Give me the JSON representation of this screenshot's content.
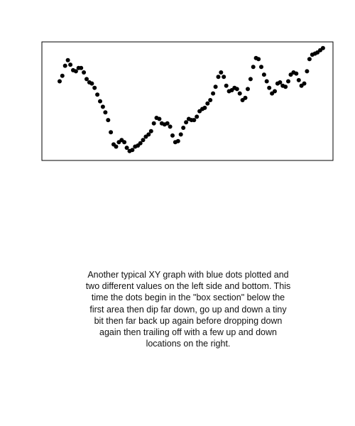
{
  "caption": "Another typical XY graph with blue dots plotted and two different values on the left side and bottom. This time the dots begin in the \"box section\" below the first area then dip far down, go up and down a tiny bit then far back up again before dropping down again then trailing off with a few up and down locations on the right.",
  "chart_data": {
    "type": "scatter",
    "title": "",
    "xlabel": "",
    "ylabel": "",
    "grid": false,
    "legend": "none",
    "axis_ticks": false,
    "point_color": "#000000",
    "frame_color": "#000000",
    "xlim": [
      0,
      100
    ],
    "ylim": [
      0,
      100
    ],
    "points": [
      [
        3.6,
        67
      ],
      [
        4.6,
        72
      ],
      [
        5.6,
        81
      ],
      [
        6.6,
        86
      ],
      [
        7.5,
        82
      ],
      [
        8.5,
        77
      ],
      [
        9.5,
        76
      ],
      [
        10.5,
        79
      ],
      [
        11.4,
        79
      ],
      [
        12.4,
        75
      ],
      [
        13.4,
        69
      ],
      [
        14.4,
        66
      ],
      [
        15.3,
        65
      ],
      [
        16.3,
        61
      ],
      [
        17.3,
        55
      ],
      [
        18.3,
        49
      ],
      [
        19.3,
        44
      ],
      [
        20.2,
        39
      ],
      [
        21.2,
        32
      ],
      [
        22.2,
        21
      ],
      [
        23.2,
        10
      ],
      [
        24.1,
        8
      ],
      [
        25.1,
        12
      ],
      [
        26.1,
        14
      ],
      [
        27.1,
        12
      ],
      [
        28.0,
        7
      ],
      [
        29.0,
        4
      ],
      [
        30.0,
        5
      ],
      [
        31.0,
        8
      ],
      [
        32.0,
        9
      ],
      [
        32.9,
        11
      ],
      [
        33.9,
        14
      ],
      [
        34.9,
        17
      ],
      [
        35.9,
        19
      ],
      [
        36.8,
        22
      ],
      [
        37.8,
        29
      ],
      [
        38.8,
        34
      ],
      [
        39.8,
        33
      ],
      [
        40.7,
        29
      ],
      [
        41.7,
        28
      ],
      [
        42.7,
        29
      ],
      [
        43.7,
        26
      ],
      [
        44.6,
        18
      ],
      [
        45.6,
        12
      ],
      [
        46.6,
        13
      ],
      [
        47.6,
        19
      ],
      [
        48.5,
        25
      ],
      [
        49.5,
        30
      ],
      [
        50.5,
        33
      ],
      [
        51.5,
        32
      ],
      [
        52.4,
        32
      ],
      [
        53.4,
        35
      ],
      [
        54.4,
        40
      ],
      [
        55.4,
        42
      ],
      [
        56.3,
        43
      ],
      [
        57.3,
        47
      ],
      [
        58.3,
        50
      ],
      [
        59.3,
        56
      ],
      [
        60.2,
        62
      ],
      [
        61.2,
        71
      ],
      [
        62.2,
        75
      ],
      [
        63.2,
        71
      ],
      [
        64.1,
        63
      ],
      [
        65.1,
        58
      ],
      [
        66.1,
        59
      ],
      [
        67.1,
        61
      ],
      [
        68.0,
        60
      ],
      [
        69.0,
        56
      ],
      [
        70.0,
        50
      ],
      [
        71.0,
        52
      ],
      [
        71.9,
        60
      ],
      [
        72.9,
        69
      ],
      [
        73.9,
        80
      ],
      [
        74.9,
        88
      ],
      [
        75.8,
        87
      ],
      [
        76.8,
        80
      ],
      [
        77.8,
        73
      ],
      [
        78.8,
        67
      ],
      [
        79.7,
        61
      ],
      [
        80.7,
        56
      ],
      [
        81.7,
        58
      ],
      [
        82.7,
        65
      ],
      [
        83.6,
        66
      ],
      [
        84.6,
        63
      ],
      [
        85.6,
        62
      ],
      [
        86.6,
        67
      ],
      [
        87.5,
        73
      ],
      [
        88.5,
        75
      ],
      [
        89.5,
        74
      ],
      [
        90.4,
        68
      ],
      [
        91.4,
        63
      ],
      [
        92.4,
        65
      ],
      [
        93.4,
        76
      ],
      [
        94.3,
        87
      ],
      [
        95.3,
        91
      ],
      [
        96.3,
        92
      ],
      [
        97.2,
        93
      ],
      [
        98.2,
        95
      ],
      [
        99.2,
        97
      ]
    ]
  }
}
